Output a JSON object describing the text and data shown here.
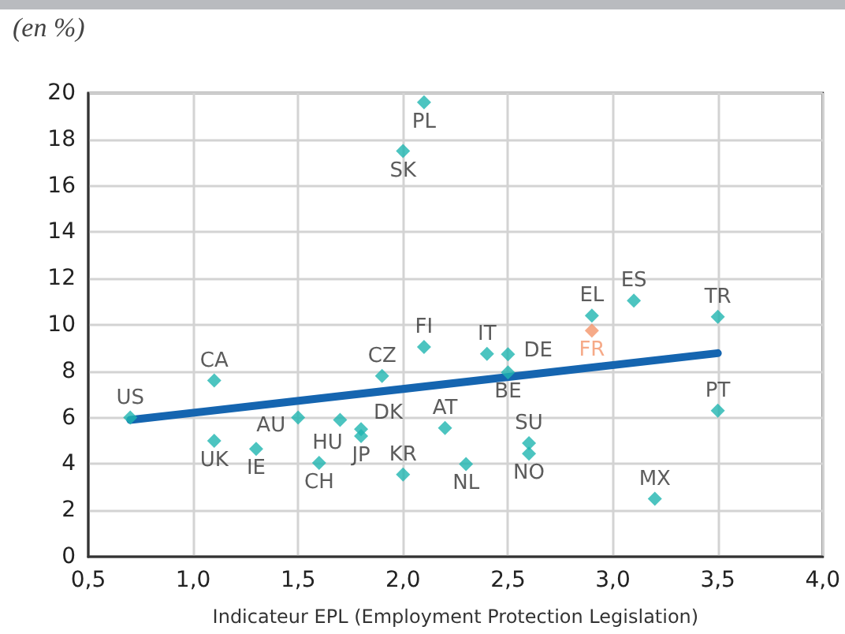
{
  "chart_data": {
    "type": "scatter",
    "title": "(en %)",
    "xlabel": "Indicateur EPL (Employment Protection Legislation)",
    "xlim": [
      0.5,
      4.0
    ],
    "xticks": [
      {
        "value": 0.5,
        "label": "0,5"
      },
      {
        "value": 1.0,
        "label": "1,0"
      },
      {
        "value": 1.5,
        "label": "1,5"
      },
      {
        "value": 2.0,
        "label": "2,0"
      },
      {
        "value": 2.5,
        "label": "2,5"
      },
      {
        "value": 3.0,
        "label": "3,0"
      },
      {
        "value": 3.5,
        "label": "3,5"
      },
      {
        "value": 4.0,
        "label": "4,0"
      }
    ],
    "ylim": [
      0,
      20
    ],
    "yticks": [
      0,
      2,
      4,
      6,
      8,
      10,
      12,
      14,
      16,
      18,
      20
    ],
    "grid": true,
    "marker": "diamond",
    "series": [
      {
        "x": [
          0.7,
          1.1,
          1.1,
          1.3,
          1.5,
          1.7,
          1.6,
          1.8,
          1.8,
          2.0,
          1.9,
          2.1,
          2.1,
          2.0,
          2.2,
          2.3,
          2.4,
          2.5,
          2.5,
          2.6,
          2.6,
          2.9,
          2.9,
          3.1,
          3.5,
          3.5,
          3.2
        ],
        "values": [
          6.0,
          7.6,
          5.0,
          4.65,
          6.0,
          5.9,
          4.05,
          5.5,
          5.2,
          3.55,
          7.8,
          9.05,
          19.6,
          17.5,
          5.55,
          4.0,
          8.75,
          8.73,
          7.95,
          4.9,
          4.45,
          10.4,
          9.75,
          11.05,
          10.35,
          6.3,
          2.5
        ],
        "colors": [
          "#1fb5b0",
          "#1fb5b0",
          "#1fb5b0",
          "#1fb5b0",
          "#1fb5b0",
          "#1fb5b0",
          "#1fb5b0",
          "#1fb5b0",
          "#1fb5b0",
          "#1fb5b0",
          "#1fb5b0",
          "#1fb5b0",
          "#1fb5b0",
          "#1fb5b0",
          "#1fb5b0",
          "#1fb5b0",
          "#1fb5b0",
          "#1fb5b0",
          "#1fb5b0",
          "#1fb5b0",
          "#1fb5b0",
          "#1fb5b0",
          "#f4956a",
          "#1fb5b0",
          "#1fb5b0",
          "#1fb5b0",
          "#1fb5b0"
        ]
      },
      {
        "type": "line",
        "x": [
          0.7,
          3.5
        ],
        "values": [
          5.9,
          8.78
        ],
        "color": "#1565b0",
        "marker": "none"
      }
    ],
    "annotations": [
      {
        "text": "US",
        "x": 0.7,
        "y": 6.0
      },
      {
        "text": "CA",
        "x": 1.1,
        "y": 7.6
      },
      {
        "text": "UK",
        "x": 1.1,
        "y": 5.0
      },
      {
        "text": "IE",
        "x": 1.3,
        "y": 4.65
      },
      {
        "text": "AU",
        "x": 1.5,
        "y": 6.0
      },
      {
        "text": "HU",
        "x": 1.7,
        "y": 5.9
      },
      {
        "text": "CH",
        "x": 1.6,
        "y": 4.05
      },
      {
        "text": "DK",
        "x": 1.8,
        "y": 5.5
      },
      {
        "text": "JP",
        "x": 1.8,
        "y": 5.2
      },
      {
        "text": "KR",
        "x": 2.0,
        "y": 3.55
      },
      {
        "text": "CZ",
        "x": 1.9,
        "y": 7.8
      },
      {
        "text": "FI",
        "x": 2.1,
        "y": 9.05
      },
      {
        "text": "PL",
        "x": 2.1,
        "y": 19.6
      },
      {
        "text": "SK",
        "x": 2.0,
        "y": 17.5
      },
      {
        "text": "AT",
        "x": 2.2,
        "y": 5.55
      },
      {
        "text": "NL",
        "x": 2.3,
        "y": 4.0
      },
      {
        "text": "IT",
        "x": 2.4,
        "y": 8.75
      },
      {
        "text": "DE",
        "x": 2.5,
        "y": 8.73
      },
      {
        "text": "BE",
        "x": 2.5,
        "y": 7.95
      },
      {
        "text": "SU",
        "x": 2.6,
        "y": 4.9
      },
      {
        "text": "NO",
        "x": 2.6,
        "y": 4.45
      },
      {
        "text": "EL",
        "x": 2.9,
        "y": 10.4
      },
      {
        "text": "FR",
        "x": 2.9,
        "y": 9.75
      },
      {
        "text": "ES",
        "x": 3.1,
        "y": 11.05
      },
      {
        "text": "TR",
        "x": 3.5,
        "y": 10.35
      },
      {
        "text": "PT",
        "x": 3.5,
        "y": 6.3
      },
      {
        "text": "MX",
        "x": 3.2,
        "y": 2.5
      }
    ]
  }
}
